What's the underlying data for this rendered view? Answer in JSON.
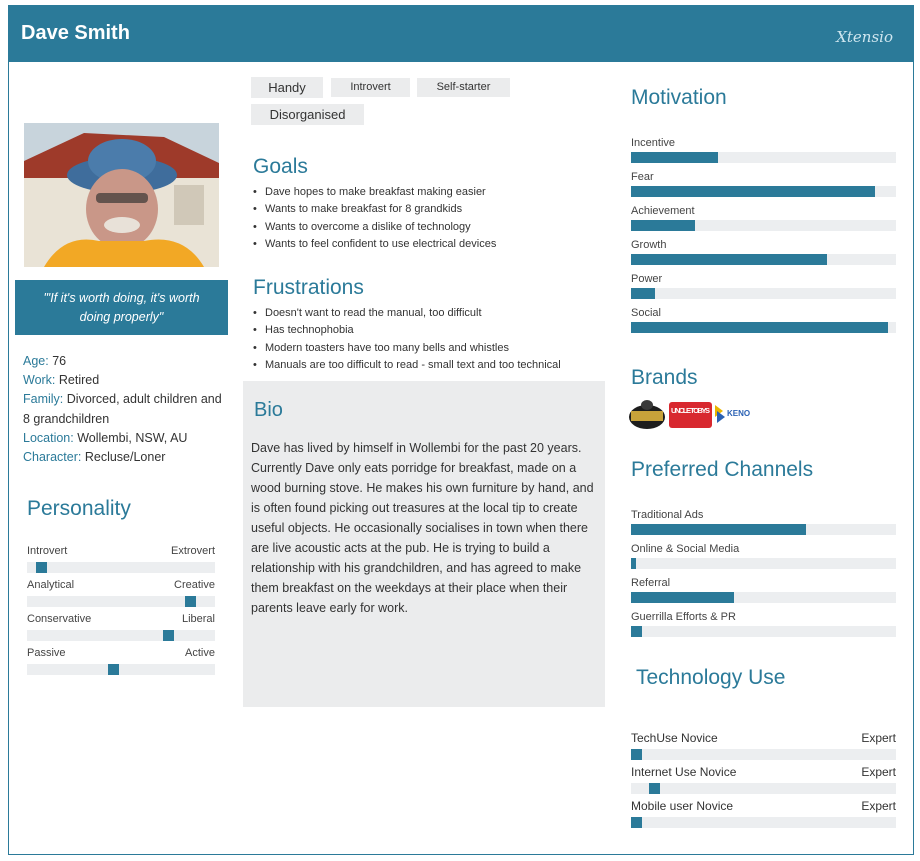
{
  "header": {
    "name": "Dave Smith",
    "logo": "Xtensio"
  },
  "quote": "\"'If it's worth doing, it's worth doing properly\"",
  "facts": [
    {
      "label": "Age:",
      "value": "76"
    },
    {
      "label": "Work:",
      "value": "Retired"
    },
    {
      "label": "Family:",
      "value": "Divorced, adult children and 8 grandchildren"
    },
    {
      "label": "Location:",
      "value": "Wollembi, NSW, AU"
    },
    {
      "label": "Character:",
      "value": "Recluse/Loner"
    }
  ],
  "personality": {
    "title": "Personality",
    "scales": [
      {
        "left": "Introvert",
        "right": "Extrovert",
        "level": 0.05
      },
      {
        "left": "Analytical",
        "right": "Creative",
        "level": 0.89
      },
      {
        "left": "Conservative",
        "right": "Liberal",
        "level": 0.77
      },
      {
        "left": "Passive",
        "right": "Active",
        "level": 0.46
      }
    ]
  },
  "tags": [
    "Handy",
    "Introvert",
    "Self-starter",
    "Disorganised"
  ],
  "goals": {
    "title": "Goals",
    "items": [
      "Dave hopes to make breakfast making easier",
      "Wants to make breakfast for 8 grandkids",
      "Wants to overcome a dislike of technology",
      "Wants to feel confident to use electrical devices"
    ]
  },
  "frustrations": {
    "title": "Frustrations",
    "items": [
      "Doesn't want to read the manual, too difficult",
      "Has technophobia",
      "Modern toasters have too many bells and whistles",
      "Manuals are too difficult to read - small text and too technical"
    ]
  },
  "bio": {
    "title": "Bio",
    "text": "Dave has lived by himself in Wollembi for the past 20 years. Currently Dave only eats porridge for breakfast, made on a wood burning stove. He makes his own furniture by hand, and is often found picking out treasures at the local tip to create useful objects. He occasionally socialises in town when there are live acoustic acts at the pub.  He is trying to build a relationship with his grandchildren, and has agreed to make them breakfast on the weekdays at their place when their parents leave early for work."
  },
  "motivation": {
    "title": "Motivation",
    "items": [
      {
        "label": "Incentive",
        "value": 0.33
      },
      {
        "label": "Fear",
        "value": 0.92
      },
      {
        "label": "Achievement",
        "value": 0.24
      },
      {
        "label": "Growth",
        "value": 0.74
      },
      {
        "label": "Power",
        "value": 0.09
      },
      {
        "label": "Social",
        "value": 0.97
      }
    ]
  },
  "brands": {
    "title": "Brands",
    "logos": [
      "Uncle Tobys",
      "Keno"
    ],
    "uncle_label": "UNCLE TOBYS",
    "keno_label": "KENO"
  },
  "channels": {
    "title": "Preferred Channels",
    "items": [
      {
        "label": "Traditional Ads",
        "value": 0.66
      },
      {
        "label": "Online & Social Media",
        "value": 0.01
      },
      {
        "label": "Referral",
        "value": 0.39
      },
      {
        "label": "Guerrilla Efforts & PR",
        "value": 0.04
      }
    ]
  },
  "technology": {
    "title": "Technology Use",
    "items": [
      {
        "left": "TechUse Novice",
        "right": "Expert",
        "level": 0.0
      },
      {
        "left": "Internet  Use Novice",
        "right": "Expert",
        "level": 0.07
      },
      {
        "left": "Mobile user Novice",
        "right": "Expert",
        "level": 0.0
      }
    ]
  },
  "colors": {
    "accent": "#2b7a99",
    "panel": "#ebeced",
    "track": "#eceef0"
  }
}
